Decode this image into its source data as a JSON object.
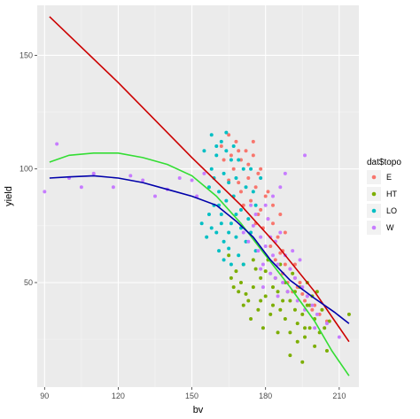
{
  "chart_data": {
    "type": "scatter",
    "xlabel": "bv",
    "ylabel": "yield",
    "xlim": [
      87,
      218
    ],
    "ylim": [
      4,
      172
    ],
    "x_ticks": [
      90,
      120,
      150,
      180,
      210
    ],
    "y_ticks": [
      50,
      100,
      150
    ],
    "grid": true,
    "legend": {
      "title": "dat$topo",
      "position": "right",
      "entries": [
        "E",
        "HT",
        "LO",
        "W"
      ]
    },
    "colors": {
      "E": "#F8766D",
      "HT": "#7CAE00",
      "LO": "#00BFC4",
      "W": "#C77CFF",
      "line_red": "#cc0000",
      "line_green": "#33dd33",
      "line_blue": "#0000aa",
      "panel": "#ebebeb",
      "grid_major": "#ffffff",
      "grid_minor": "#f5f5f5"
    },
    "series": [
      {
        "name": "E",
        "points": [
          [
            165,
            115
          ],
          [
            162,
            110
          ],
          [
            168,
            112
          ],
          [
            172,
            108
          ],
          [
            170,
            104
          ],
          [
            167,
            100
          ],
          [
            175,
            106
          ],
          [
            178,
            100
          ],
          [
            173,
            96
          ],
          [
            169,
            94
          ],
          [
            176,
            92
          ],
          [
            180,
            88
          ],
          [
            174,
            86
          ],
          [
            171,
            84
          ],
          [
            177,
            80
          ],
          [
            181,
            78
          ],
          [
            179,
            74
          ],
          [
            183,
            76
          ],
          [
            185,
            70
          ],
          [
            182,
            66
          ],
          [
            186,
            63
          ],
          [
            184,
            60
          ],
          [
            188,
            58
          ],
          [
            187,
            54
          ],
          [
            190,
            56
          ],
          [
            189,
            50
          ],
          [
            192,
            52
          ],
          [
            193,
            48
          ],
          [
            195,
            45
          ],
          [
            191,
            46
          ],
          [
            196,
            42
          ],
          [
            200,
            40
          ],
          [
            202,
            36
          ],
          [
            205,
            33
          ],
          [
            199,
            38
          ],
          [
            166,
            106
          ],
          [
            173,
            102
          ],
          [
            177,
            98
          ],
          [
            170,
            90
          ],
          [
            183,
            84
          ],
          [
            186,
            80
          ],
          [
            188,
            72
          ],
          [
            165,
            95
          ],
          [
            175,
            112
          ],
          [
            181,
            90
          ],
          [
            178,
            82
          ],
          [
            184,
            68
          ],
          [
            194,
            50
          ],
          [
            197,
            44
          ],
          [
            163,
            104
          ],
          [
            169,
            108
          ],
          [
            176,
            76
          ],
          [
            187,
            64
          ],
          [
            192,
            58
          ]
        ]
      },
      {
        "name": "HT",
        "points": [
          [
            165,
            62
          ],
          [
            168,
            55
          ],
          [
            170,
            50
          ],
          [
            172,
            45
          ],
          [
            175,
            48
          ],
          [
            178,
            52
          ],
          [
            180,
            44
          ],
          [
            183,
            40
          ],
          [
            185,
            46
          ],
          [
            188,
            50
          ],
          [
            190,
            42
          ],
          [
            192,
            38
          ],
          [
            195,
            36
          ],
          [
            197,
            40
          ],
          [
            200,
            34
          ],
          [
            198,
            30
          ],
          [
            202,
            28
          ],
          [
            196,
            26
          ],
          [
            193,
            32
          ],
          [
            188,
            34
          ],
          [
            182,
            36
          ],
          [
            177,
            38
          ],
          [
            173,
            42
          ],
          [
            169,
            46
          ],
          [
            166,
            52
          ],
          [
            171,
            58
          ],
          [
            176,
            56
          ],
          [
            181,
            60
          ],
          [
            186,
            58
          ],
          [
            191,
            54
          ],
          [
            194,
            48
          ],
          [
            199,
            44
          ],
          [
            203,
            38
          ],
          [
            206,
            33
          ],
          [
            214,
            36
          ],
          [
            200,
            22
          ],
          [
            205,
            20
          ],
          [
            195,
            15
          ],
          [
            190,
            18
          ],
          [
            193,
            24
          ],
          [
            185,
            28
          ],
          [
            179,
            30
          ],
          [
            174,
            34
          ],
          [
            180,
            55
          ],
          [
            184,
            52
          ],
          [
            189,
            46
          ],
          [
            197,
            50
          ],
          [
            201,
            46
          ],
          [
            187,
            42
          ],
          [
            192,
            46
          ],
          [
            175,
            60
          ],
          [
            183,
            48
          ],
          [
            178,
            42
          ],
          [
            167,
            48
          ],
          [
            171,
            40
          ],
          [
            196,
            30
          ],
          [
            204,
            30
          ],
          [
            198,
            40
          ],
          [
            190,
            28
          ],
          [
            186,
            38
          ]
        ]
      },
      {
        "name": "LO",
        "points": [
          [
            158,
            115
          ],
          [
            162,
            112
          ],
          [
            160,
            106
          ],
          [
            164,
            108
          ],
          [
            166,
            104
          ],
          [
            163,
            98
          ],
          [
            159,
            96
          ],
          [
            165,
            94
          ],
          [
            168,
            96
          ],
          [
            161,
            90
          ],
          [
            164,
            86
          ],
          [
            167,
            88
          ],
          [
            170,
            82
          ],
          [
            162,
            80
          ],
          [
            166,
            76
          ],
          [
            160,
            72
          ],
          [
            163,
            68
          ],
          [
            158,
            74
          ],
          [
            156,
            70
          ],
          [
            165,
            65
          ],
          [
            169,
            62
          ],
          [
            172,
            68
          ],
          [
            174,
            72
          ],
          [
            176,
            64
          ],
          [
            171,
            58
          ],
          [
            168,
            70
          ],
          [
            161,
            64
          ],
          [
            157,
            80
          ],
          [
            154,
            76
          ],
          [
            163,
            60
          ],
          [
            166,
            58
          ],
          [
            170,
            74
          ],
          [
            173,
            78
          ],
          [
            158,
            100
          ],
          [
            160,
            110
          ],
          [
            164,
            116
          ],
          [
            167,
            110
          ],
          [
            169,
            104
          ],
          [
            171,
            100
          ],
          [
            155,
            108
          ],
          [
            157,
            92
          ],
          [
            161,
            84
          ],
          [
            175,
            90
          ],
          [
            178,
            96
          ],
          [
            174,
            100
          ],
          [
            172,
            92
          ],
          [
            168,
            80
          ],
          [
            165,
            72
          ],
          [
            162,
            76
          ],
          [
            159,
            84
          ],
          [
            176,
            84
          ]
        ]
      },
      {
        "name": "W",
        "points": [
          [
            90,
            90
          ],
          [
            95,
            111
          ],
          [
            100,
            96
          ],
          [
            105,
            92
          ],
          [
            110,
            98
          ],
          [
            118,
            92
          ],
          [
            125,
            97
          ],
          [
            130,
            95
          ],
          [
            135,
            88
          ],
          [
            140,
            91
          ],
          [
            145,
            96
          ],
          [
            150,
            95
          ],
          [
            152,
            88
          ],
          [
            155,
            98
          ],
          [
            175,
            75
          ],
          [
            178,
            70
          ],
          [
            180,
            66
          ],
          [
            183,
            62
          ],
          [
            185,
            58
          ],
          [
            177,
            64
          ],
          [
            179,
            58
          ],
          [
            182,
            54
          ],
          [
            184,
            68
          ],
          [
            186,
            72
          ],
          [
            181,
            78
          ],
          [
            176,
            80
          ],
          [
            174,
            84
          ],
          [
            188,
            62
          ],
          [
            190,
            56
          ],
          [
            192,
            52
          ],
          [
            195,
            48
          ],
          [
            197,
            44
          ],
          [
            199,
            40
          ],
          [
            187,
            50
          ],
          [
            189,
            46
          ],
          [
            193,
            42
          ],
          [
            196,
            38
          ],
          [
            201,
            36
          ],
          [
            173,
            68
          ],
          [
            171,
            72
          ],
          [
            180,
            84
          ],
          [
            183,
            88
          ],
          [
            186,
            92
          ],
          [
            188,
            98
          ],
          [
            196,
            106
          ],
          [
            191,
            64
          ],
          [
            194,
            60
          ],
          [
            185,
            44
          ],
          [
            179,
            48
          ],
          [
            200,
            30
          ],
          [
            205,
            32
          ],
          [
            210,
            26
          ],
          [
            184,
            52
          ],
          [
            178,
            56
          ],
          [
            182,
            70
          ]
        ]
      }
    ],
    "lines": [
      {
        "color_key": "line_red",
        "points": [
          [
            92,
            167
          ],
          [
            120,
            138
          ],
          [
            150,
            105
          ],
          [
            170,
            84
          ],
          [
            185,
            66
          ],
          [
            200,
            46
          ],
          [
            214,
            24
          ]
        ]
      },
      {
        "color_key": "line_green",
        "points": [
          [
            92,
            103
          ],
          [
            100,
            106
          ],
          [
            110,
            107
          ],
          [
            120,
            107
          ],
          [
            130,
            105
          ],
          [
            140,
            102
          ],
          [
            150,
            97
          ],
          [
            160,
            88
          ],
          [
            170,
            76
          ],
          [
            180,
            62
          ],
          [
            190,
            48
          ],
          [
            200,
            33
          ],
          [
            207,
            20
          ],
          [
            214,
            9
          ]
        ]
      },
      {
        "color_key": "line_blue",
        "points": [
          [
            92,
            96
          ],
          [
            100,
            96.5
          ],
          [
            110,
            97
          ],
          [
            120,
            96
          ],
          [
            130,
            94
          ],
          [
            140,
            91
          ],
          [
            150,
            88
          ],
          [
            160,
            84
          ],
          [
            168,
            77
          ],
          [
            175,
            70
          ],
          [
            182,
            60
          ],
          [
            190,
            51
          ],
          [
            200,
            43
          ],
          [
            208,
            37
          ],
          [
            214,
            32
          ]
        ]
      }
    ]
  }
}
